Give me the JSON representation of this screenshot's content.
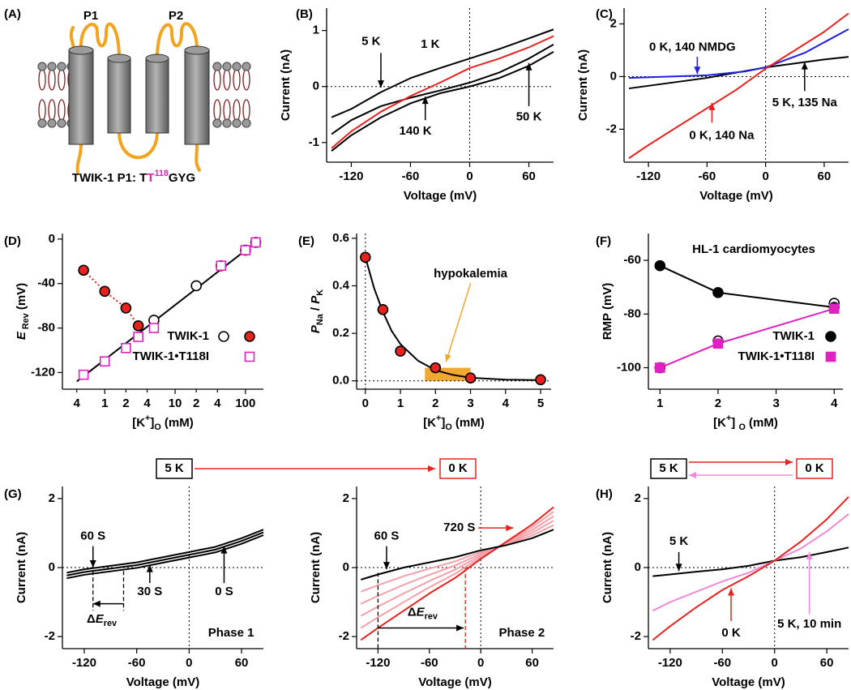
{
  "diagram": {
    "label": "(A)",
    "loops": [
      "P1",
      "P2"
    ],
    "caption": [
      {
        "text": "TWIK-1 P1: T"
      },
      {
        "text": "T",
        "color": "#e020c0"
      },
      {
        "text": "118",
        "style": "sup",
        "color": "#e020c0"
      },
      {
        "text": "GYG"
      }
    ]
  },
  "chart_data": [
    {
      "type": "line",
      "label": "(B)",
      "xlabel": "Voltage (mV)",
      "ylabel": "Current (nA)",
      "xlim": [
        -145,
        85
      ],
      "xticks": [
        -120,
        -60,
        0,
        60
      ],
      "ylim": [
        -1.35,
        1.4
      ],
      "yticks": [
        -1,
        0,
        1
      ],
      "zero_lines": true,
      "series": [
        {
          "color": "#000000",
          "x": [
            -140,
            -120,
            -90,
            -60,
            -30,
            0,
            30,
            60,
            85
          ],
          "values": [
            -0.55,
            -0.4,
            -0.1,
            0.15,
            0.33,
            0.5,
            0.67,
            0.86,
            1.02
          ]
        },
        {
          "color": "#000000",
          "x": [
            -140,
            -120,
            -90,
            -60,
            -30,
            0,
            30,
            60,
            85
          ],
          "values": [
            -0.85,
            -0.6,
            -0.35,
            -0.2,
            -0.07,
            0.07,
            0.25,
            0.5,
            0.75
          ]
        },
        {
          "color": "#000000",
          "x": [
            -140,
            -120,
            -90,
            -60,
            -30,
            0,
            30,
            60,
            85
          ],
          "values": [
            -1.15,
            -0.87,
            -0.55,
            -0.3,
            -0.12,
            0.0,
            0.15,
            0.37,
            0.62
          ]
        },
        {
          "color": "#e8231f",
          "x": [
            -140,
            -120,
            -90,
            -60,
            -30,
            0,
            30,
            60,
            85
          ],
          "values": [
            -1.1,
            -0.8,
            -0.45,
            -0.17,
            0.07,
            0.33,
            0.5,
            0.7,
            0.9
          ]
        }
      ],
      "annotations": [
        {
          "text": "5 K",
          "color": "#000000"
        },
        {
          "text": "1 K",
          "color": "#e8231f"
        },
        {
          "text": "140 K",
          "color": "#000000"
        },
        {
          "text": "50 K",
          "color": "#000000"
        }
      ]
    },
    {
      "type": "line",
      "label": "(C)",
      "xlabel": "Voltage (mV)",
      "ylabel": "Current (nA)",
      "xlim": [
        -145,
        85
      ],
      "xticks": [
        -120,
        -60,
        0,
        60
      ],
      "ylim": [
        -3.25,
        2.6
      ],
      "yticks": [
        -2,
        0,
        2
      ],
      "zero_lines": true,
      "series": [
        {
          "color": "#000000",
          "x": [
            -140,
            -120,
            -90,
            -60,
            -30,
            0,
            30,
            60,
            85
          ],
          "values": [
            -0.45,
            -0.35,
            -0.2,
            -0.05,
            0.15,
            0.35,
            0.5,
            0.65,
            0.75
          ]
        },
        {
          "color": "#1f1fe0",
          "x": [
            -140,
            -100,
            -60,
            -20,
            0,
            40,
            85
          ],
          "values": [
            -0.05,
            0.0,
            0.05,
            0.2,
            0.35,
            0.9,
            1.8
          ]
        },
        {
          "color": "#e8231f",
          "x": [
            -140,
            -120,
            -90,
            -60,
            -30,
            0,
            30,
            60,
            85
          ],
          "values": [
            -3.1,
            -2.6,
            -1.9,
            -1.2,
            -0.5,
            0.3,
            1.0,
            1.7,
            2.4
          ]
        }
      ],
      "annotations": [
        {
          "text": "0 K, 140 NMDG",
          "color": "#1f1fe0"
        },
        {
          "text": "5 K, 135 Na",
          "color": "#000000"
        },
        {
          "text": "0 K, 140 Na",
          "color": "#e8231f"
        }
      ]
    },
    {
      "type": "scatter",
      "label": "(D)",
      "xscale": "log",
      "xlabel": [
        {
          "text": "[K"
        },
        {
          "text": "+",
          "style": "sup"
        },
        {
          "text": "]"
        },
        {
          "text": "O",
          "style": "sub"
        },
        {
          "text": " (mM)"
        }
      ],
      "ylabel": [
        {
          "text": "E",
          "style": "italic"
        },
        {
          "text": " Rev",
          "style": "sub"
        },
        {
          "text": " (mV)"
        }
      ],
      "xlim": [
        0.25,
        180
      ],
      "xticks": [
        {
          "value": 0.4,
          "label": "4"
        },
        1,
        {
          "value": 2,
          "label": "2"
        },
        {
          "value": 4,
          "label": "4"
        },
        10,
        {
          "value": 20,
          "label": "2"
        },
        {
          "value": 40,
          "label": "4"
        },
        100
      ],
      "ylim": [
        -135,
        5
      ],
      "yticks": [
        -120,
        -80,
        -40,
        0
      ],
      "series": [
        {
          "color": "#000000",
          "mode": "line",
          "x": [
            0.4,
            140
          ],
          "values": [
            -128,
            -3
          ]
        },
        {
          "name": "TWIK-1",
          "color": "#000000",
          "mode": "markers",
          "marker": "circle-open",
          "x": [
            5,
            20,
            45,
            100,
            140
          ],
          "values": [
            -73,
            -42,
            -24,
            -10,
            -3
          ]
        },
        {
          "color": "#e8231f",
          "edgecolor": "#000000",
          "mode": "line+markers",
          "dash": "dotted",
          "marker": "circle-filled",
          "x": [
            0.5,
            1,
            2,
            3
          ],
          "values": [
            -28,
            -47,
            -62,
            -78
          ]
        },
        {
          "name": "TWIK-1•T118I",
          "color": "#e020c0",
          "mode": "markers",
          "marker": "square-open",
          "x": [
            0.5,
            1,
            2,
            3,
            5,
            45,
            100,
            140
          ],
          "values": [
            -122,
            -110,
            -98,
            -88,
            -80,
            -24,
            -10,
            -3
          ]
        }
      ]
    },
    {
      "type": "scatter",
      "label": "(E)",
      "xlabel": [
        {
          "text": "[K"
        },
        {
          "text": "+",
          "style": "sup"
        },
        {
          "text": "]"
        },
        {
          "text": "O",
          "style": "sub"
        },
        {
          "text": " (mM)"
        }
      ],
      "ylabel": [
        {
          "text": "P",
          "style": "italic"
        },
        {
          "text": "Na",
          "style": "sub"
        },
        {
          "text": " / "
        },
        {
          "text": "P",
          "style": "italic"
        },
        {
          "text": "K",
          "style": "sub"
        }
      ],
      "xlim": [
        -0.25,
        5.3
      ],
      "xticks": [
        0,
        1,
        2,
        3,
        4,
        5
      ],
      "ylim": [
        -0.035,
        0.62
      ],
      "yticks": [
        {
          "value": 0,
          "label": "0.0"
        },
        0.2,
        0.4,
        0.6
      ],
      "zero_lines": true,
      "shade": {
        "x": [
          1.7,
          3.0
        ],
        "y": [
          0,
          0.055
        ],
        "color": "#f0a830"
      },
      "series": [
        {
          "color": "#000000",
          "mode": "line",
          "x": [
            0,
            0.25,
            0.5,
            0.75,
            1,
            1.5,
            2,
            2.5,
            3,
            4,
            5
          ],
          "values": [
            0.52,
            0.39,
            0.29,
            0.21,
            0.155,
            0.085,
            0.045,
            0.025,
            0.013,
            0.005,
            0.003
          ]
        },
        {
          "color": "#e8231f",
          "edgecolor": "#000000",
          "mode": "markers",
          "marker": "circle-filled",
          "x": [
            0,
            0.5,
            1,
            2,
            3,
            5
          ],
          "values": [
            0.52,
            0.3,
            0.125,
            0.055,
            0.012,
            0.005
          ]
        }
      ],
      "annotations": [
        {
          "text": "hypokalemia",
          "color": "#f0a830"
        }
      ]
    },
    {
      "type": "scatter",
      "label": "(F)",
      "title": "HL-1 cardiomyocytes",
      "title_color": "#f05a28",
      "xlabel": [
        {
          "text": "[K"
        },
        {
          "text": "+",
          "style": "sup"
        },
        {
          "text": "] "
        },
        {
          "text": "O",
          "style": "sub"
        },
        {
          "text": " (mM)"
        }
      ],
      "ylabel": "RMP (mV)",
      "xlim": [
        0.8,
        4.15
      ],
      "xticks": [
        1,
        2,
        3,
        4
      ],
      "ylim": [
        -108,
        -50
      ],
      "yticks": [
        -100,
        -80,
        -60
      ],
      "series": [
        {
          "color": "#000000",
          "mode": "markers",
          "marker": "circle-open",
          "x": [
            1,
            2,
            4
          ],
          "values": [
            -100,
            -90,
            -76
          ]
        },
        {
          "name": "TWIK-1",
          "color": "#000000",
          "mode": "line+markers",
          "marker": "circle-filled",
          "x": [
            1,
            2,
            4
          ],
          "values": [
            -62,
            -72,
            -77.5
          ]
        },
        {
          "name": "TWIK-1•T118I",
          "color": "#e020c0",
          "mode": "line+markers",
          "marker": "square-filled",
          "x": [
            1,
            2,
            4
          ],
          "values": [
            -100,
            -91,
            -78
          ]
        }
      ]
    },
    {
      "type": "line",
      "label": "(G)",
      "xlabel": "Voltage (mV)",
      "ylabel": "Current (nA)",
      "xlim": [
        -145,
        85
      ],
      "xticks": [
        -120,
        -60,
        0,
        60
      ],
      "ylim": [
        -2.35,
        2.35
      ],
      "yticks": [
        -2,
        0,
        2
      ],
      "zero_lines": true,
      "header": [
        {
          "text": "5 K",
          "color": "#000000"
        },
        {
          "text": "0 K",
          "color": "#e8231f"
        }
      ],
      "series": [
        {
          "color": "#000000",
          "x": [
            -140,
            -120,
            -90,
            -60,
            -30,
            0,
            30,
            60,
            85
          ],
          "values": [
            -0.31,
            -0.21,
            -0.11,
            -0.01,
            0.14,
            0.29,
            0.44,
            0.69,
            0.94
          ]
        },
        {
          "color": "#000000",
          "x": [
            -140,
            -120,
            -90,
            -60,
            -30,
            0,
            30,
            60,
            85
          ],
          "values": [
            -0.23,
            -0.13,
            -0.03,
            0.07,
            0.22,
            0.37,
            0.52,
            0.77,
            1.02
          ]
        },
        {
          "color": "#000000",
          "x": [
            -140,
            -120,
            -90,
            -60,
            -30,
            0,
            30,
            60,
            85
          ],
          "values": [
            -0.15,
            -0.05,
            0.05,
            0.15,
            0.3,
            0.45,
            0.6,
            0.85,
            1.1
          ]
        }
      ],
      "annotations": [
        {
          "text": "60 S",
          "color": "#000000"
        },
        {
          "text": "30 S",
          "color": "#000000"
        },
        {
          "text": "0 S",
          "color": "#000000"
        },
        {
          "text": "Phase 1",
          "color": "#000000"
        },
        {
          "text": [
            {
              "text": "Δ"
            },
            {
              "text": "E",
              "style": "italic"
            },
            {
              "text": "rev",
              "style": "sub"
            }
          ],
          "color": "#000000"
        }
      ]
    },
    {
      "type": "line",
      "xlabel": "Voltage (mV)",
      "ylabel": "Current (nA)",
      "xlim": [
        -145,
        85
      ],
      "xticks": [
        -120,
        -60,
        0,
        60
      ],
      "ylim": [
        -2.35,
        2.35
      ],
      "yticks": [
        -2,
        0,
        2
      ],
      "zero_lines": true,
      "series": [
        {
          "color": "#f4a0a8",
          "x": [
            -140,
            -120,
            -90,
            -60,
            -30,
            0,
            30,
            60,
            85
          ],
          "values": [
            -0.7,
            -0.51,
            -0.25,
            -0.03,
            0.18,
            0.45,
            0.67,
            0.93,
            1.23
          ]
        },
        {
          "color": "#f4a0a8",
          "x": [
            -140,
            -120,
            -90,
            -60,
            -30,
            0,
            30,
            60,
            85
          ],
          "values": [
            -1.05,
            -0.82,
            -0.5,
            -0.21,
            0.06,
            0.4,
            0.69,
            1.01,
            1.36
          ]
        },
        {
          "color": "#f4a0a8",
          "x": [
            -140,
            -120,
            -90,
            -60,
            -30,
            0,
            30,
            60,
            85
          ],
          "values": [
            -1.4,
            -1.13,
            -0.75,
            -0.39,
            -0.06,
            0.35,
            0.71,
            1.09,
            1.49
          ]
        },
        {
          "color": "#f4a0a8",
          "x": [
            -140,
            -120,
            -90,
            -60,
            -30,
            0,
            30,
            60,
            85
          ],
          "values": [
            -1.75,
            -1.44,
            -1.0,
            -0.57,
            -0.18,
            0.3,
            0.73,
            1.17,
            1.62
          ]
        },
        {
          "color": "#e8231f",
          "x": [
            -140,
            -120,
            -90,
            -60,
            -30,
            0,
            30,
            60,
            85
          ],
          "values": [
            -2.1,
            -1.75,
            -1.25,
            -0.75,
            -0.3,
            0.25,
            0.75,
            1.25,
            1.75
          ]
        },
        {
          "color": "#000000",
          "x": [
            -140,
            -120,
            -90,
            -60,
            -30,
            0,
            30,
            60,
            85
          ],
          "values": [
            -0.35,
            -0.2,
            0.0,
            0.15,
            0.3,
            0.5,
            0.65,
            0.85,
            1.1
          ]
        }
      ],
      "annotations": [
        {
          "text": "60 S",
          "color": "#000000"
        },
        {
          "text": "720 S",
          "color": "#e8231f"
        },
        {
          "text": "Phase 2",
          "color": "#000000"
        },
        {
          "text": [
            {
              "text": "Δ"
            },
            {
              "text": "E",
              "style": "italic"
            },
            {
              "text": "rev",
              "style": "sub"
            }
          ],
          "color": "#000000"
        }
      ]
    },
    {
      "type": "line",
      "label": "(H)",
      "xlabel": "Voltage (mV)",
      "ylabel": "Current (nA)",
      "xlim": [
        -145,
        85
      ],
      "xticks": [
        -120,
        -60,
        0,
        60
      ],
      "ylim": [
        -2.35,
        2.35
      ],
      "yticks": [
        -2,
        0,
        2
      ],
      "zero_lines": true,
      "header": [
        {
          "text": "5 K",
          "color": "#000000"
        },
        {
          "text": "0 K",
          "color": "#e8231f"
        }
      ],
      "series": [
        {
          "color": "#000000",
          "x": [
            -140,
            -120,
            -90,
            -60,
            -30,
            0,
            30,
            60,
            85
          ],
          "values": [
            -0.25,
            -0.2,
            -0.12,
            -0.05,
            0.05,
            0.2,
            0.3,
            0.45,
            0.58
          ]
        },
        {
          "color": "#f08ad8",
          "x": [
            -140,
            -120,
            -90,
            -60,
            -30,
            0,
            30,
            60,
            85
          ],
          "values": [
            -1.25,
            -1.0,
            -0.7,
            -0.4,
            -0.15,
            0.2,
            0.55,
            1.05,
            1.55
          ]
        },
        {
          "color": "#e8231f",
          "x": [
            -140,
            -120,
            -90,
            -60,
            -30,
            0,
            30,
            60,
            85
          ],
          "values": [
            -2.1,
            -1.7,
            -1.15,
            -0.65,
            -0.25,
            0.2,
            0.75,
            1.4,
            2.05
          ]
        }
      ],
      "annotations": [
        {
          "text": "5 K",
          "color": "#000000"
        },
        {
          "text": "0 K",
          "color": "#e8231f"
        },
        {
          "text": "5 K, 10 min",
          "color": "#f08ad8"
        }
      ]
    }
  ]
}
